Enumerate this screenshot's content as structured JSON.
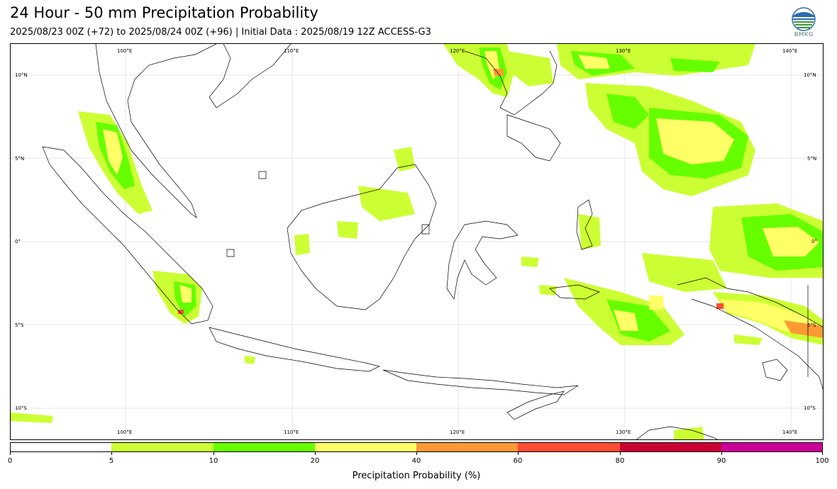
{
  "title": "24 Hour - 50 mm Precipitation Probability",
  "subtitle": "2025/08/23 00Z (+72) to 2025/08/24 00Z (+96) | Initial Data : 2025/08/19 12Z ACCESS-G3",
  "logo": {
    "text": "BMKG",
    "icon": "bmkg-logo"
  },
  "map": {
    "longitude_labels": [
      "100°E",
      "110°E",
      "120°E",
      "130°E",
      "140°E"
    ],
    "latitude_labels": [
      "10°N",
      "5°N",
      "0°",
      "5°S",
      "10°S"
    ]
  },
  "legend": {
    "title": "Precipitation Probability (%)",
    "ticks": [
      "0",
      "5",
      "10",
      "20",
      "40",
      "60",
      "80",
      "90",
      "100"
    ],
    "colors": [
      "#ffffff",
      "#ccff33",
      "#66ff00",
      "#ffff66",
      "#ff9933",
      "#ff4c33",
      "#cc0033",
      "#cc0099"
    ]
  },
  "chart_data": {
    "type": "heatmap",
    "title": "24 Hour - 50 mm Precipitation Probability",
    "xlabel": "",
    "ylabel": "",
    "x_ticks": [
      "100°E",
      "110°E",
      "120°E",
      "130°E",
      "140°E"
    ],
    "y_ticks": [
      "10°N",
      "5°N",
      "0°",
      "5°S",
      "10°S"
    ],
    "xlim": [
      93,
      142
    ],
    "ylim": [
      -12,
      12
    ],
    "colorbar": {
      "label": "Precipitation Probability (%)",
      "bounds": [
        0,
        5,
        10,
        20,
        40,
        60,
        80,
        90,
        100
      ],
      "colors": [
        "#ffffff",
        "#ccff33",
        "#66ff00",
        "#ffff66",
        "#ff9933",
        "#ff4c33",
        "#cc0033",
        "#cc0099"
      ]
    },
    "grid": true
  }
}
